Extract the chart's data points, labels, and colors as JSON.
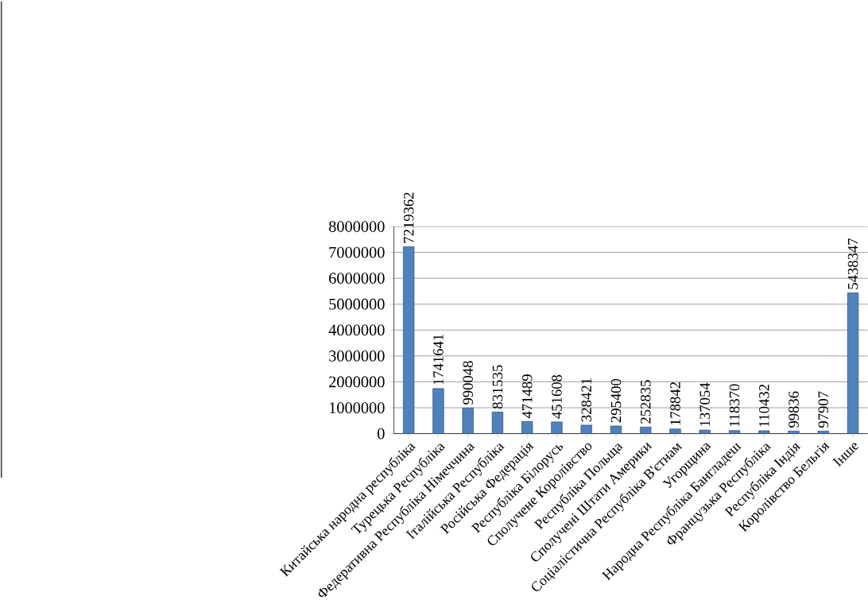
{
  "chart_data": {
    "type": "bar",
    "categories": [
      "Китайська народна республіка",
      "Турецька Республіка",
      "Федеративна Республіка Німеччина",
      "Італійська Республіка",
      "Російська Федерація",
      "Республіка Білорусь",
      "Сполучене Королівство",
      "Республіка Польща",
      "Сполучені Штати Америки",
      "Соціалістична Республіка В'єтнам",
      "Угорщина",
      "Народна Республіка Бангладеш",
      "Французька Республіка",
      "Республіка Індія",
      "Королівство Бельгія",
      "Інше"
    ],
    "values": [
      7219362,
      1741641,
      990048,
      831535,
      471489,
      451608,
      328421,
      295400,
      252835,
      178842,
      137054,
      118370,
      110432,
      99836,
      97907,
      5438347
    ],
    "color": "#4f81bd",
    "ylim": [
      0,
      8000000
    ],
    "yticks": [
      0,
      1000000,
      2000000,
      3000000,
      4000000,
      5000000,
      6000000,
      7000000,
      8000000
    ],
    "grid": "y",
    "data_labels": true
  }
}
